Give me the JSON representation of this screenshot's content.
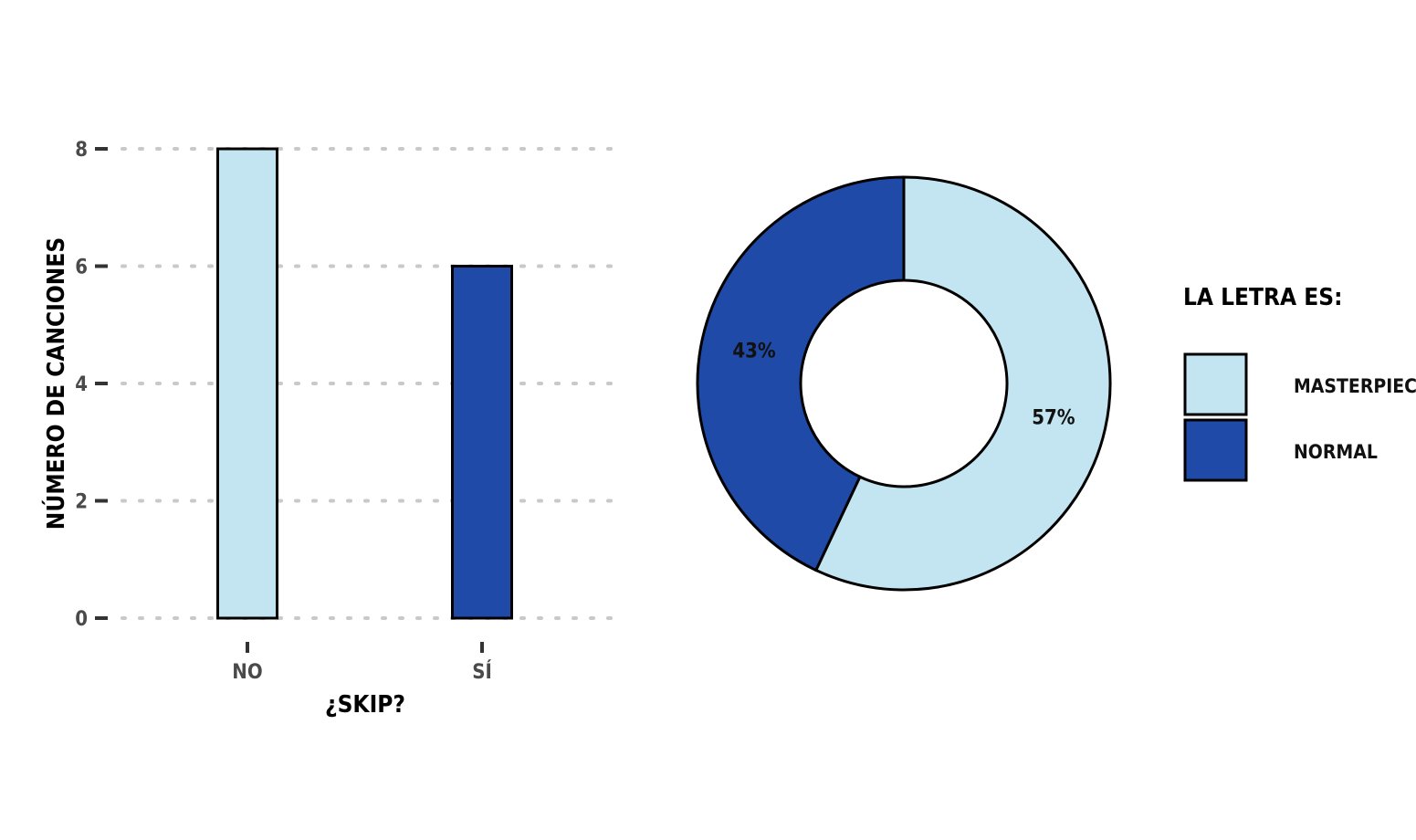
{
  "colors": {
    "masterpiece": "#c3e5f2",
    "normal": "#1f4aa8",
    "grid": "#c9c9c9",
    "outline": "#000000"
  },
  "chart_data": [
    {
      "type": "bar",
      "categories": [
        "NO",
        "SÍ"
      ],
      "values": [
        8,
        6
      ],
      "bar_fill_keys": [
        "masterpiece",
        "normal"
      ],
      "xlabel": "¿SKIP?",
      "ylabel": "NÚMERO DE CANCIONES",
      "ylim": [
        0,
        8
      ],
      "yticks": [
        "0",
        "2",
        "4",
        "6",
        "8"
      ],
      "grid": "horizontal dotted"
    },
    {
      "type": "pie",
      "style": "donut",
      "series": [
        {
          "name": "MASTERPIECE",
          "value": 57,
          "label": "57%",
          "color_key": "masterpiece"
        },
        {
          "name": "NORMAL",
          "value": 43,
          "label": "43%",
          "color_key": "normal"
        }
      ]
    }
  ],
  "legend": {
    "title": "LA LETRA ES:",
    "placement": "right",
    "items": [
      {
        "label": "MASTERPIECE",
        "color_key": "masterpiece"
      },
      {
        "label": "NORMAL",
        "color_key": "normal"
      }
    ]
  }
}
